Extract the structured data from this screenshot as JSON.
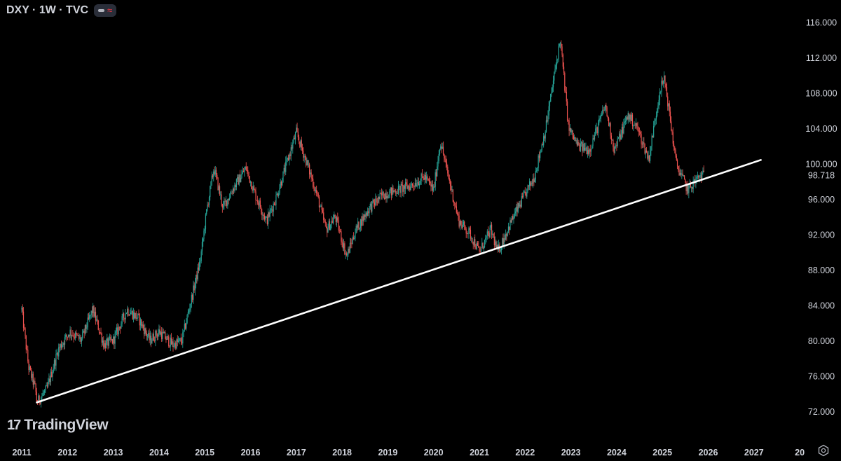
{
  "header": {
    "symbol": "DXY · 1W · TVC",
    "pill_icons": [
      "line-style-icon",
      "wave-icon"
    ]
  },
  "branding": {
    "mark": "17",
    "text": "TradingView"
  },
  "colors": {
    "background": "#000000",
    "up": "#26a69a",
    "down": "#ef5350",
    "trendline": "#ffffff",
    "axis_text": "#d1d4dc",
    "price_label_bg": "#000000"
  },
  "chart_data": {
    "type": "candlestick",
    "title": "",
    "xlabel": "",
    "ylabel": "",
    "y_ticks": [
      "116.000",
      "112.000",
      "108.000",
      "104.000",
      "100.000",
      "96.000",
      "92.000",
      "88.000",
      "84.000",
      "80.000",
      "76.000",
      "72.000"
    ],
    "current_price_label": "98.718",
    "x_ticks": [
      "2011",
      "2012",
      "2013",
      "2014",
      "2015",
      "2016",
      "2017",
      "2018",
      "2019",
      "2020",
      "2021",
      "2022",
      "2023",
      "2024",
      "2025",
      "2026",
      "2027",
      "20"
    ],
    "ylim": [
      70,
      117
    ],
    "price_path": [
      {
        "t": "2011.00",
        "v": 83.5
      },
      {
        "t": "2011.15",
        "v": 77.0
      },
      {
        "t": "2011.30",
        "v": 74.5
      },
      {
        "t": "2011.33",
        "v": 73.0
      },
      {
        "t": "2011.55",
        "v": 74.5
      },
      {
        "t": "2011.80",
        "v": 79.0
      },
      {
        "t": "2012.05",
        "v": 81.0
      },
      {
        "t": "2012.30",
        "v": 80.0
      },
      {
        "t": "2012.55",
        "v": 83.5
      },
      {
        "t": "2012.80",
        "v": 79.5
      },
      {
        "t": "2013.00",
        "v": 80.0
      },
      {
        "t": "2013.30",
        "v": 83.5
      },
      {
        "t": "2013.55",
        "v": 82.5
      },
      {
        "t": "2013.80",
        "v": 80.0
      },
      {
        "t": "2014.00",
        "v": 81.0
      },
      {
        "t": "2014.30",
        "v": 79.5
      },
      {
        "t": "2014.50",
        "v": 80.0
      },
      {
        "t": "2014.70",
        "v": 84.5
      },
      {
        "t": "2014.90",
        "v": 89.0
      },
      {
        "t": "2015.05",
        "v": 95.0
      },
      {
        "t": "2015.20",
        "v": 99.5
      },
      {
        "t": "2015.40",
        "v": 95.0
      },
      {
        "t": "2015.60",
        "v": 97.0
      },
      {
        "t": "2015.90",
        "v": 99.5
      },
      {
        "t": "2016.10",
        "v": 96.5
      },
      {
        "t": "2016.35",
        "v": 93.5
      },
      {
        "t": "2016.55",
        "v": 96.0
      },
      {
        "t": "2016.85",
        "v": 101.0
      },
      {
        "t": "2017.00",
        "v": 103.5
      },
      {
        "t": "2017.20",
        "v": 100.5
      },
      {
        "t": "2017.45",
        "v": 96.5
      },
      {
        "t": "2017.65",
        "v": 92.5
      },
      {
        "t": "2017.85",
        "v": 94.0
      },
      {
        "t": "2018.10",
        "v": 89.5
      },
      {
        "t": "2018.30",
        "v": 92.5
      },
      {
        "t": "2018.60",
        "v": 95.0
      },
      {
        "t": "2018.90",
        "v": 96.5
      },
      {
        "t": "2019.20",
        "v": 97.0
      },
      {
        "t": "2019.50",
        "v": 97.5
      },
      {
        "t": "2019.80",
        "v": 98.5
      },
      {
        "t": "2020.00",
        "v": 97.0
      },
      {
        "t": "2020.15",
        "v": 102.5
      },
      {
        "t": "2020.30",
        "v": 99.0
      },
      {
        "t": "2020.55",
        "v": 93.5
      },
      {
        "t": "2020.80",
        "v": 92.0
      },
      {
        "t": "2021.00",
        "v": 90.0
      },
      {
        "t": "2021.25",
        "v": 92.5
      },
      {
        "t": "2021.40",
        "v": 90.0
      },
      {
        "t": "2021.70",
        "v": 93.5
      },
      {
        "t": "2021.95",
        "v": 96.0
      },
      {
        "t": "2022.20",
        "v": 98.5
      },
      {
        "t": "2022.45",
        "v": 104.0
      },
      {
        "t": "2022.70",
        "v": 112.0
      },
      {
        "t": "2022.77",
        "v": 114.0
      },
      {
        "t": "2022.95",
        "v": 104.0
      },
      {
        "t": "2023.15",
        "v": 102.0
      },
      {
        "t": "2023.40",
        "v": 101.5
      },
      {
        "t": "2023.75",
        "v": 106.5
      },
      {
        "t": "2023.95",
        "v": 101.5
      },
      {
        "t": "2024.25",
        "v": 105.5
      },
      {
        "t": "2024.45",
        "v": 104.0
      },
      {
        "t": "2024.70",
        "v": 100.5
      },
      {
        "t": "2024.95",
        "v": 108.5
      },
      {
        "t": "2025.05",
        "v": 109.5
      },
      {
        "t": "2025.30",
        "v": 100.0
      },
      {
        "t": "2025.55",
        "v": 97.0
      },
      {
        "t": "2025.80",
        "v": 98.5
      },
      {
        "t": "2025.92",
        "v": 98.7
      }
    ],
    "trendline": {
      "start": {
        "t": "2011.33",
        "v": 73.0
      },
      "end": {
        "t": "2027.15",
        "v": 100.4
      }
    }
  }
}
